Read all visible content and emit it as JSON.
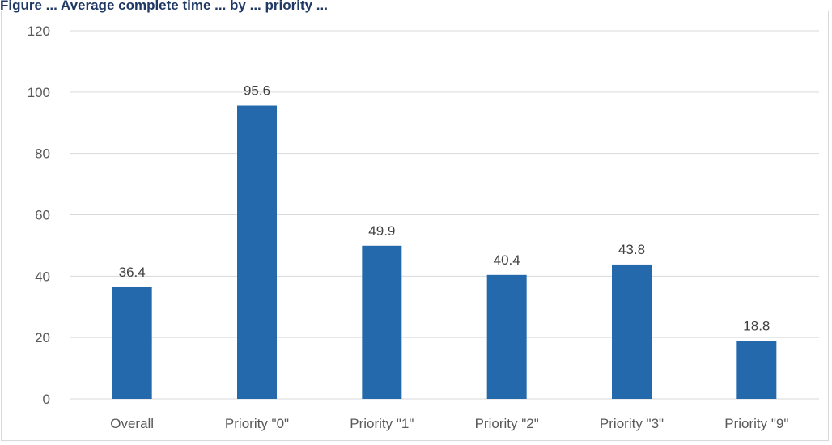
{
  "caption": "Figure ... Average complete time ... by ... priority ...",
  "chart_data": {
    "type": "bar",
    "title": "",
    "xlabel": "",
    "ylabel": "",
    "categories": [
      "Overall",
      "Priority \"0\"",
      "Priority \"1\"",
      "Priority \"2\"",
      "Priority \"3\"",
      "Priority \"9\""
    ],
    "series": [
      {
        "values": [
          36.4,
          95.6,
          49.9,
          40.4,
          43.8,
          18.8
        ],
        "color": "#2369ac"
      }
    ],
    "data_labels": [
      "36.4",
      "95.6",
      "49.9",
      "40.4",
      "43.8",
      "18.8"
    ],
    "ylim": [
      0,
      120
    ],
    "yticks": [
      0,
      20,
      40,
      60,
      80,
      100,
      120
    ],
    "ytick_labels": [
      "0",
      "20",
      "40",
      "60",
      "80",
      "100",
      "120"
    ],
    "grid": true,
    "legend": "none",
    "gridline_color": "#d9d9d9"
  }
}
